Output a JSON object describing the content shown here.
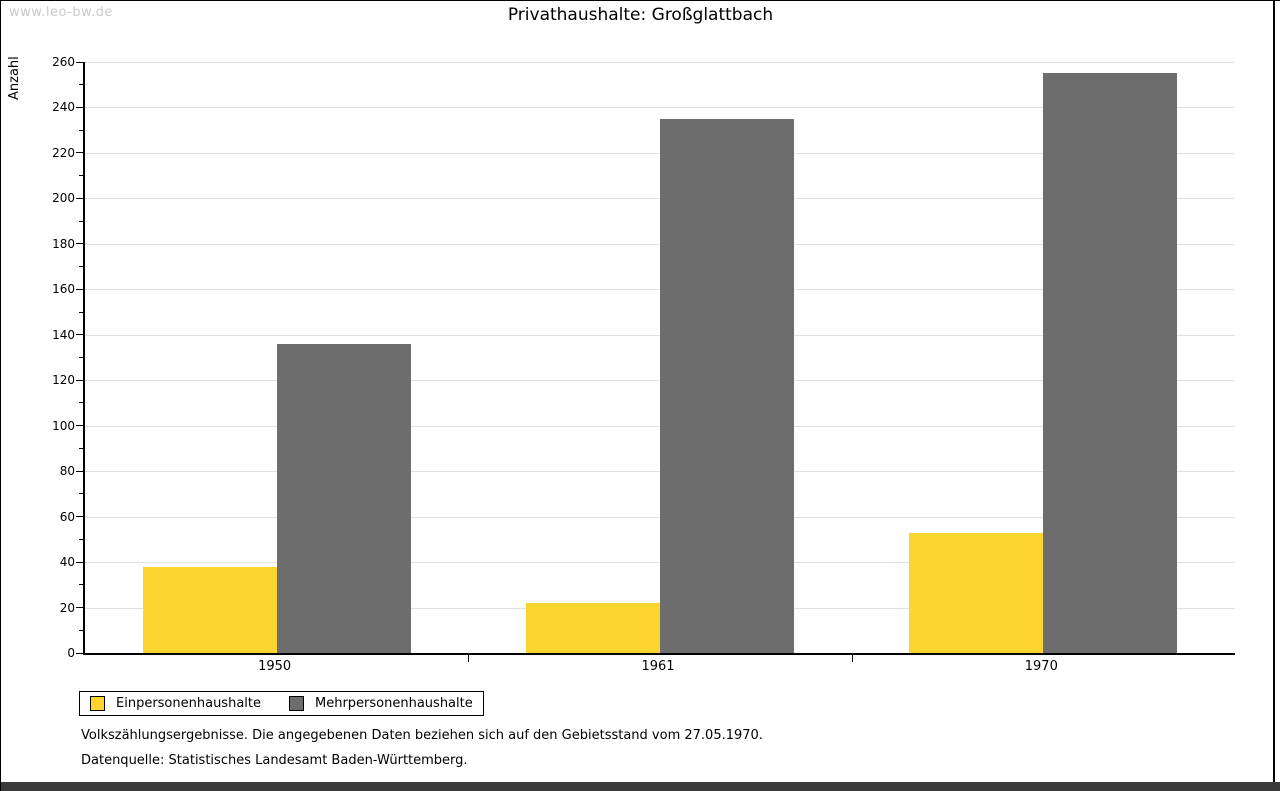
{
  "watermark": "www.leo-bw.de",
  "title": "Privathaushalte: Großglattbach",
  "chart_data": {
    "type": "bar",
    "title": "Privathaushalte: Großglattbach",
    "categories": [
      "1950",
      "1961",
      "1970"
    ],
    "series": [
      {
        "name": "Einpersonenhaushalte",
        "color": "#fdd32e",
        "values": [
          38,
          22,
          53
        ]
      },
      {
        "name": "Mehrpersonenhaushalte",
        "color": "#6d6d6d",
        "values": [
          136,
          235,
          255
        ]
      }
    ],
    "xlabel": "",
    "ylabel": "Anzahl",
    "ylim": [
      0,
      260
    ],
    "ytick_step": 20,
    "ytick_minor_step": 10,
    "grid": true,
    "legend_position": "bottom-left"
  },
  "footer": {
    "line1": "Volkszählungsergebnisse. Die angegebenen Daten beziehen sich auf den Gebietsstand vom 27.05.1970.",
    "line2": "Datenquelle: Statistisches Landesamt Baden-Württemberg."
  },
  "colors": {
    "bar_yellow": "#fdd32e",
    "bar_gray": "#6d6d6d",
    "gridline": "#e0e0e0",
    "watermark": "#c9c9c9",
    "frame": "#000000",
    "bottom_strip": "#3a3a3a"
  }
}
